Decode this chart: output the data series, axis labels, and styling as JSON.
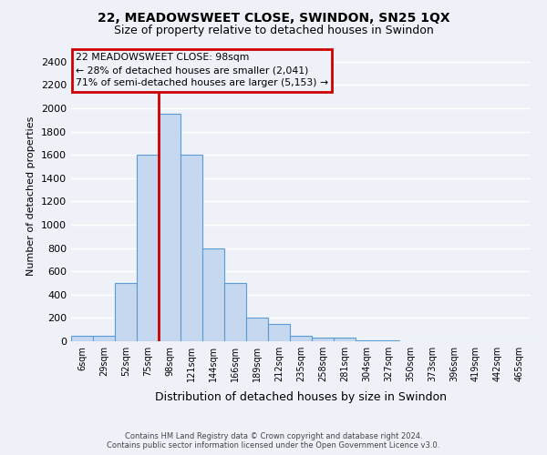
{
  "title": "22, MEADOWSWEET CLOSE, SWINDON, SN25 1QX",
  "subtitle": "Size of property relative to detached houses in Swindon",
  "xlabel": "Distribution of detached houses by size in Swindon",
  "ylabel": "Number of detached properties",
  "footer1": "Contains HM Land Registry data © Crown copyright and database right 2024.",
  "footer2": "Contains public sector information licensed under the Open Government Licence v3.0.",
  "bin_labels": [
    "6sqm",
    "29sqm",
    "52sqm",
    "75sqm",
    "98sqm",
    "121sqm",
    "144sqm",
    "166sqm",
    "189sqm",
    "212sqm",
    "235sqm",
    "258sqm",
    "281sqm",
    "304sqm",
    "327sqm",
    "350sqm",
    "373sqm",
    "396sqm",
    "419sqm",
    "442sqm",
    "465sqm"
  ],
  "bar_heights": [
    50,
    50,
    500,
    1600,
    1950,
    1600,
    800,
    500,
    200,
    150,
    50,
    30,
    30,
    5,
    5,
    0,
    0,
    0,
    0,
    0,
    0
  ],
  "bar_color": "#c5d8f0",
  "bar_edge_color": "#5b9bd5",
  "vline_index": 4,
  "vline_color": "#cc0000",
  "ylim": [
    0,
    2500
  ],
  "yticks": [
    0,
    200,
    400,
    600,
    800,
    1000,
    1200,
    1400,
    1600,
    1800,
    2000,
    2200,
    2400
  ],
  "annotation_text": "22 MEADOWSWEET CLOSE: 98sqm\n← 28% of detached houses are smaller (2,041)\n71% of semi-detached houses are larger (5,153) →",
  "annotation_box_color": "#cc0000",
  "bg_color": "#eef2f8",
  "grid_color": "#d8e4f0",
  "title_fontsize": 10,
  "subtitle_fontsize": 9
}
